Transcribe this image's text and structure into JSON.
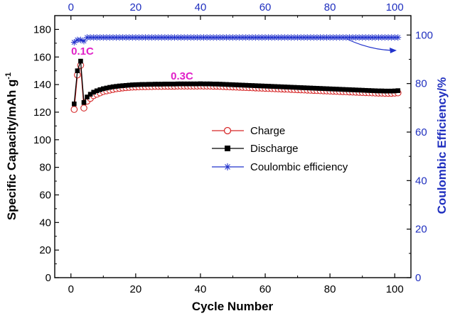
{
  "chart_data": {
    "type": "line",
    "xlabel": "Cycle Number",
    "ylabel": "Specific Capacity/mAh g",
    "ylabel_superscript": "-1",
    "y2label": "Coulombic Efficiency/%",
    "xlim": [
      -5,
      105
    ],
    "ylim": [
      0,
      190
    ],
    "y2lim": [
      0,
      108
    ],
    "x_ticks": [
      0,
      20,
      40,
      60,
      80,
      100
    ],
    "y_ticks": [
      0,
      20,
      40,
      60,
      80,
      100,
      120,
      140,
      160,
      180
    ],
    "y2_ticks": [
      0,
      20,
      40,
      60,
      80,
      100
    ],
    "annotations": [
      {
        "text": "0.1C",
        "x": 4.5,
        "y": 164
      },
      {
        "text": "0.3C",
        "x": 33,
        "y": 144
      }
    ],
    "legend": {
      "placement": "center-right",
      "entries": [
        "Charge",
        "Discharge",
        "Coulombic efficiency"
      ]
    },
    "colors": {
      "charge": "#d62728",
      "discharge": "#000000",
      "coulombic": "#2233cc",
      "annotation": "#e020c8",
      "right_axis": "#1f2fbf"
    },
    "series": [
      {
        "name": "Charge",
        "axis": "left",
        "marker": "open-circle",
        "x": [
          1,
          2,
          3,
          4,
          5,
          6,
          7,
          8,
          9,
          10,
          11,
          12,
          13,
          14,
          15,
          16,
          17,
          18,
          19,
          20,
          21,
          22,
          23,
          24,
          25,
          26,
          27,
          28,
          29,
          30,
          31,
          32,
          33,
          34,
          35,
          36,
          37,
          38,
          39,
          40,
          41,
          42,
          43,
          44,
          45,
          46,
          47,
          48,
          49,
          50,
          51,
          52,
          53,
          54,
          55,
          56,
          57,
          58,
          59,
          60,
          61,
          62,
          63,
          64,
          65,
          66,
          67,
          68,
          69,
          70,
          71,
          72,
          73,
          74,
          75,
          76,
          77,
          78,
          79,
          80,
          81,
          82,
          83,
          84,
          85,
          86,
          87,
          88,
          89,
          90,
          91,
          92,
          93,
          94,
          95,
          96,
          97,
          98,
          99,
          100,
          101
        ],
        "values": [
          122,
          147,
          154,
          123,
          128,
          130,
          132,
          133,
          134,
          135,
          135.5,
          136,
          136.5,
          137,
          137.3,
          137.6,
          137.8,
          138,
          138.2,
          138.3,
          138.4,
          138.5,
          138.5,
          138.6,
          138.6,
          138.7,
          138.7,
          138.7,
          138.8,
          138.8,
          138.8,
          138.8,
          138.9,
          138.9,
          138.9,
          138.9,
          138.9,
          138.9,
          138.9,
          139,
          138.9,
          138.9,
          138.9,
          138.8,
          138.8,
          138.7,
          138.6,
          138.5,
          138.4,
          138.3,
          138.2,
          138.1,
          138,
          137.9,
          137.8,
          137.7,
          137.6,
          137.5,
          137.4,
          137.3,
          137.2,
          137.1,
          137,
          136.9,
          136.8,
          136.7,
          136.6,
          136.5,
          136.4,
          136.3,
          136.2,
          136.1,
          136,
          135.9,
          135.8,
          135.7,
          135.6,
          135.5,
          135.4,
          135.3,
          135.2,
          135.1,
          135,
          134.9,
          134.8,
          134.7,
          134.6,
          134.5,
          134.4,
          134.3,
          134.2,
          134.1,
          134,
          133.9,
          133.8,
          133.8,
          133.7,
          133.7,
          133.7,
          133.8,
          134
        ]
      },
      {
        "name": "Discharge",
        "axis": "left",
        "marker": "filled-square",
        "x": [
          1,
          2,
          3,
          4,
          5,
          6,
          7,
          8,
          9,
          10,
          11,
          12,
          13,
          14,
          15,
          16,
          17,
          18,
          19,
          20,
          21,
          22,
          23,
          24,
          25,
          26,
          27,
          28,
          29,
          30,
          31,
          32,
          33,
          34,
          35,
          36,
          37,
          38,
          39,
          40,
          41,
          42,
          43,
          44,
          45,
          46,
          47,
          48,
          49,
          50,
          51,
          52,
          53,
          54,
          55,
          56,
          57,
          58,
          59,
          60,
          61,
          62,
          63,
          64,
          65,
          66,
          67,
          68,
          69,
          70,
          71,
          72,
          73,
          74,
          75,
          76,
          77,
          78,
          79,
          80,
          81,
          82,
          83,
          84,
          85,
          86,
          87,
          88,
          89,
          90,
          91,
          92,
          93,
          94,
          95,
          96,
          97,
          98,
          99,
          100,
          101
        ],
        "values": [
          126,
          150,
          157,
          127,
          131,
          133,
          134.5,
          135.5,
          136.3,
          137,
          137.5,
          138,
          138.4,
          138.7,
          139,
          139.2,
          139.4,
          139.6,
          139.8,
          139.9,
          140,
          140.1,
          140.1,
          140.2,
          140.2,
          140.3,
          140.3,
          140.3,
          140.4,
          140.4,
          140.4,
          140.4,
          140.5,
          140.5,
          140.5,
          140.5,
          140.5,
          140.5,
          140.5,
          140.6,
          140.5,
          140.5,
          140.5,
          140.4,
          140.4,
          140.3,
          140.2,
          140.1,
          140,
          139.9,
          139.8,
          139.7,
          139.6,
          139.5,
          139.4,
          139.3,
          139.2,
          139.1,
          139,
          138.9,
          138.8,
          138.7,
          138.6,
          138.5,
          138.4,
          138.3,
          138.2,
          138.1,
          138,
          137.9,
          137.8,
          137.7,
          137.6,
          137.5,
          137.4,
          137.3,
          137.2,
          137.1,
          137,
          136.9,
          136.8,
          136.7,
          136.6,
          136.5,
          136.4,
          136.3,
          136.2,
          136.1,
          136,
          135.9,
          135.8,
          135.7,
          135.6,
          135.5,
          135.4,
          135.4,
          135.3,
          135.3,
          135.3,
          135.4,
          135.6
        ]
      },
      {
        "name": "Coulombic efficiency",
        "axis": "right",
        "marker": "star",
        "x": [
          1,
          2,
          3,
          4,
          5,
          6,
          7,
          8,
          9,
          10,
          11,
          12,
          13,
          14,
          15,
          16,
          17,
          18,
          19,
          20,
          21,
          22,
          23,
          24,
          25,
          26,
          27,
          28,
          29,
          30,
          31,
          32,
          33,
          34,
          35,
          36,
          37,
          38,
          39,
          40,
          41,
          42,
          43,
          44,
          45,
          46,
          47,
          48,
          49,
          50,
          51,
          52,
          53,
          54,
          55,
          56,
          57,
          58,
          59,
          60,
          61,
          62,
          63,
          64,
          65,
          66,
          67,
          68,
          69,
          70,
          71,
          72,
          73,
          74,
          75,
          76,
          77,
          78,
          79,
          80,
          81,
          82,
          83,
          84,
          85,
          86,
          87,
          88,
          89,
          90,
          91,
          92,
          93,
          94,
          95,
          96,
          97,
          98,
          99,
          100,
          101
        ],
        "values": [
          97,
          98,
          98,
          97.5,
          99,
          99,
          99,
          99,
          99,
          99,
          99,
          99,
          99,
          99,
          99,
          99,
          99,
          99,
          99,
          99,
          99,
          99,
          99,
          99,
          99,
          99,
          99,
          99,
          99,
          99,
          99,
          99,
          99,
          99,
          99,
          99,
          99,
          99,
          99,
          99,
          99,
          99,
          99,
          99,
          99,
          99,
          99,
          99,
          99,
          99,
          99,
          99,
          99,
          99,
          99,
          99,
          99,
          99,
          99,
          99,
          99,
          99,
          99,
          99,
          99,
          99,
          99,
          99,
          99,
          99,
          99,
          99,
          99,
          99,
          99,
          99,
          99,
          99,
          99,
          99,
          99,
          99,
          99,
          99,
          99,
          99,
          99,
          99,
          99,
          99,
          99,
          99,
          99,
          99,
          99,
          99,
          99,
          99,
          99,
          99,
          99
        ]
      }
    ]
  }
}
